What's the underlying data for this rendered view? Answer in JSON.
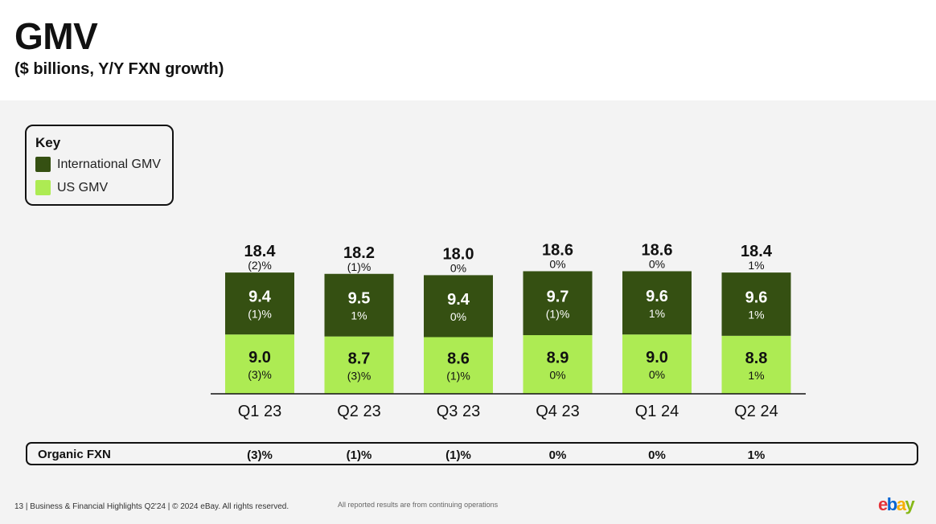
{
  "title": "GMV",
  "subtitle": "($ billions, Y/Y FXN growth)",
  "key": {
    "title": "Key",
    "items": [
      {
        "label": "International GMV",
        "color": "#355012"
      },
      {
        "label": "US GMV",
        "color": "#adeb53"
      }
    ]
  },
  "chart_data": {
    "type": "bar",
    "stacked": true,
    "categories": [
      "Q1 23",
      "Q2 23",
      "Q3 23",
      "Q4 23",
      "Q1 24",
      "Q2 24"
    ],
    "series": [
      {
        "name": "US GMV",
        "color": "#adeb53",
        "values": [
          9.0,
          8.7,
          8.6,
          8.9,
          9.0,
          8.8
        ],
        "growth": [
          "(3)%",
          "(3)%",
          "(1)%",
          "0%",
          "0%",
          "1%"
        ]
      },
      {
        "name": "International GMV",
        "color": "#355012",
        "values": [
          9.4,
          9.5,
          9.4,
          9.7,
          9.6,
          9.6
        ],
        "growth": [
          "(1)%",
          "1%",
          "0%",
          "(1)%",
          "1%",
          "1%"
        ]
      }
    ],
    "totals": [
      18.4,
      18.2,
      18.0,
      18.6,
      18.6,
      18.4
    ],
    "total_growth": [
      "(2)%",
      "(1)%",
      "0%",
      "0%",
      "0%",
      "1%"
    ]
  },
  "organic": {
    "label": "Organic FXN",
    "values": [
      "(3)%",
      "(1)%",
      "(1)%",
      "0%",
      "0%",
      "1%"
    ]
  },
  "footer": {
    "text": "13 | Business & Financial Highlights Q2'24 | © 2024 eBay. All rights reserved.",
    "note": "All reported results are from continuing operations",
    "logo_letters": [
      "e",
      "b",
      "a",
      "y"
    ]
  }
}
